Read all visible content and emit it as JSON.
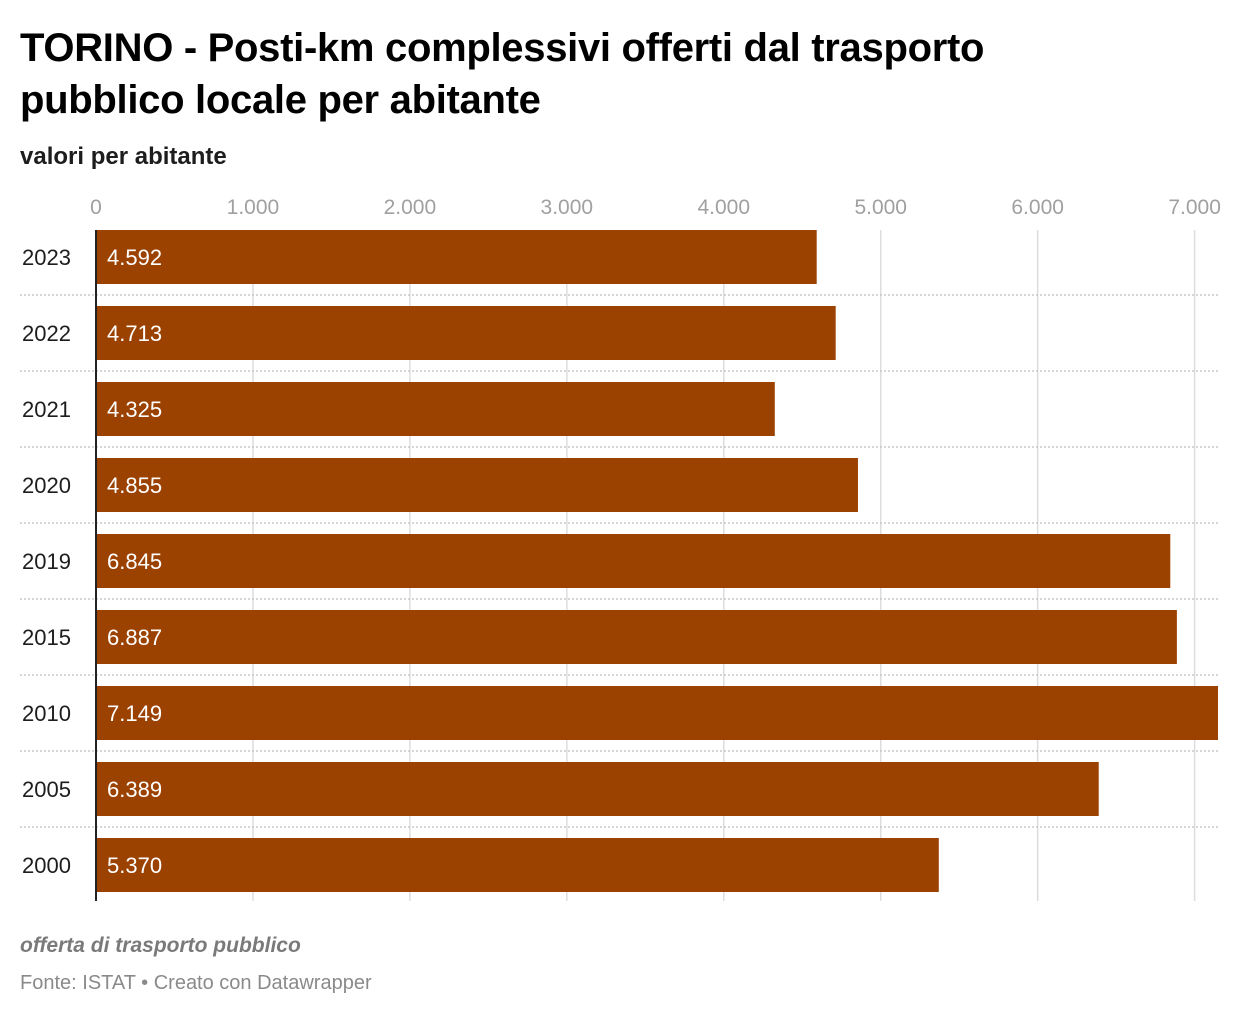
{
  "header": {
    "title": "TORINO - Posti-km complessivi offerti dal trasporto pubblico locale per abitante",
    "subtitle": "valori per abitante"
  },
  "footer": {
    "note": "offerta di trasporto pubblico",
    "source": "Fonte: ISTAT • Creato con Datawrapper"
  },
  "colors": {
    "bar": "#9c4200",
    "grid": "#dddddd",
    "row_divider": "#c8c8c8",
    "axis": "#222222"
  },
  "chart_data": {
    "type": "bar",
    "orientation": "horizontal",
    "title": "TORINO - Posti-km complessivi offerti dal trasporto pubblico locale per abitante",
    "subtitle": "valori per abitante",
    "categories": [
      "2023",
      "2022",
      "2021",
      "2020",
      "2019",
      "2015",
      "2010",
      "2005",
      "2000"
    ],
    "values": [
      4592,
      4713,
      4325,
      4855,
      6845,
      6887,
      7149,
      6389,
      5370
    ],
    "value_labels": [
      "4.592",
      "4.713",
      "4.325",
      "4.855",
      "6.845",
      "6.887",
      "7.149",
      "6.389",
      "5.370"
    ],
    "xlim": [
      0,
      7149
    ],
    "x_ticks": [
      0,
      1000,
      2000,
      3000,
      4000,
      5000,
      6000,
      7000
    ],
    "x_tick_labels": [
      "0",
      "1.000",
      "2.000",
      "3.000",
      "4.000",
      "5.000",
      "6.000",
      "7.000"
    ],
    "grid": true,
    "legend": "none"
  }
}
